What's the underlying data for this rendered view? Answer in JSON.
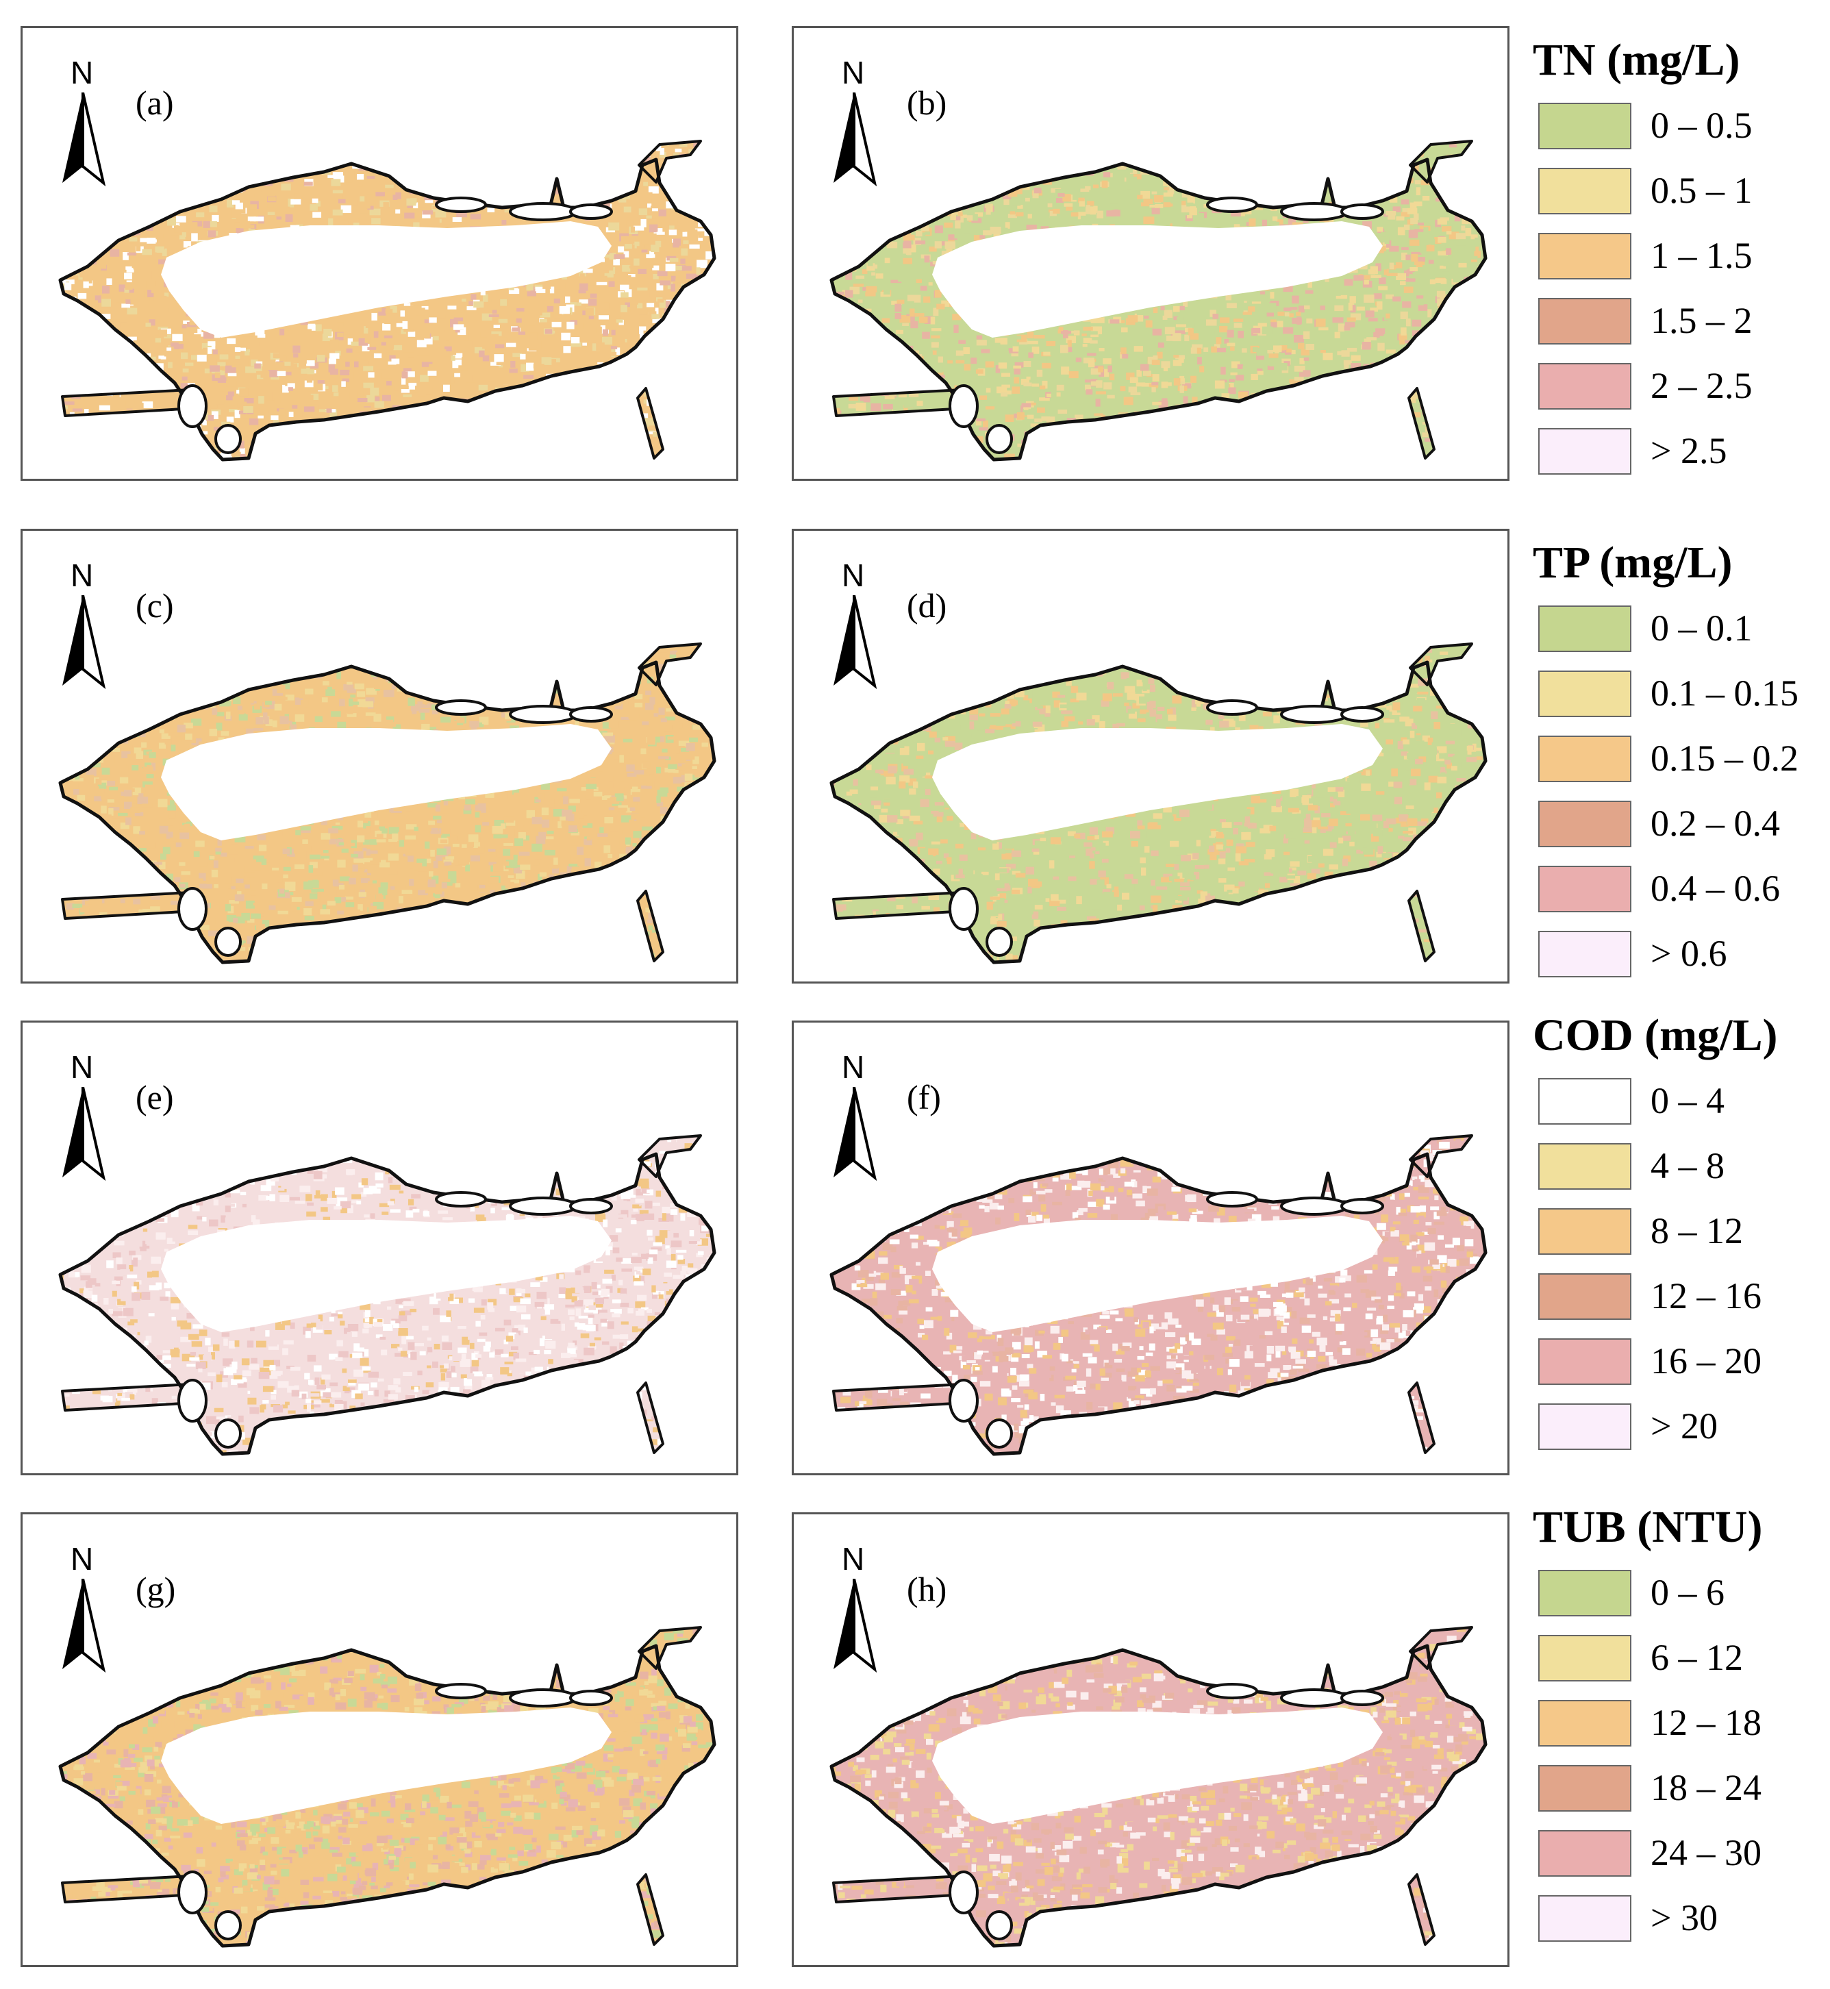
{
  "panels": [
    {
      "label": "(a)",
      "north": "N",
      "palette": [
        "#f3c785",
        "#f3c785",
        "#e8b4a3",
        "#ecd89a",
        "#ffffff"
      ]
    },
    {
      "label": "(b)",
      "north": "N",
      "palette": [
        "#c8d996",
        "#f1d996",
        "#f3c785",
        "#ecd89a",
        "#e8b4a3"
      ]
    },
    {
      "label": "(c)",
      "north": "N",
      "palette": [
        "#f3c785",
        "#f3c785",
        "#f1d996",
        "#c8d996",
        "#e8c2a0"
      ]
    },
    {
      "label": "(d)",
      "north": "N",
      "palette": [
        "#c8d996",
        "#c8d996",
        "#f1d996",
        "#f3c785",
        "#e8c2a0"
      ]
    },
    {
      "label": "(e)",
      "north": "N",
      "palette": [
        "#f4dede",
        "#fbeeee",
        "#ffffff",
        "#edc7c7",
        "#f3c785"
      ]
    },
    {
      "label": "(f)",
      "north": "N",
      "palette": [
        "#e8b4b4",
        "#f3c785",
        "#fbeeee",
        "#e8b4a3",
        "#ffffff"
      ]
    },
    {
      "label": "(g)",
      "north": "N",
      "palette": [
        "#f3c785",
        "#e8b4a3",
        "#e8b4b4",
        "#f1d996",
        "#c8d996"
      ]
    },
    {
      "label": "(h)",
      "north": "N",
      "palette": [
        "#e8b4b4",
        "#f3c785",
        "#fbeeee",
        "#e8b4a3",
        "#f1d996"
      ]
    }
  ],
  "legends": [
    {
      "title": "TN (mg/L)",
      "items": [
        {
          "label": "0 – 0.5",
          "color": "#c5d68f"
        },
        {
          "label": "0.5 – 1",
          "color": "#f1e09c"
        },
        {
          "label": "1 – 1.5",
          "color": "#f5c889"
        },
        {
          "label": "1.5 – 2",
          "color": "#e1a58a"
        },
        {
          "label": "2 – 2.5",
          "color": "#eaaeae"
        },
        {
          "label": "> 2.5",
          "color": "#fbeefb"
        }
      ]
    },
    {
      "title": "TP (mg/L)",
      "items": [
        {
          "label": "0 – 0.1",
          "color": "#c5d68f"
        },
        {
          "label": "0.1 – 0.15",
          "color": "#f1e09c"
        },
        {
          "label": "0.15 – 0.2",
          "color": "#f5c889"
        },
        {
          "label": "0.2 – 0.4",
          "color": "#e1a58a"
        },
        {
          "label": "0.4 – 0.6",
          "color": "#eaaeae"
        },
        {
          "label": "> 0.6",
          "color": "#fbeefb"
        }
      ]
    },
    {
      "title": "COD (mg/L)",
      "items": [
        {
          "label": "0 – 4",
          "color": "#ffffff"
        },
        {
          "label": "4 – 8",
          "color": "#f1e09c"
        },
        {
          "label": "8 – 12",
          "color": "#f5c889"
        },
        {
          "label": "12 – 16",
          "color": "#e1a58a"
        },
        {
          "label": "16 – 20",
          "color": "#eaaeae"
        },
        {
          "label": "> 20",
          "color": "#fbeefb"
        }
      ]
    },
    {
      "title": "TUB (NTU)",
      "items": [
        {
          "label": "0 – 6",
          "color": "#c5d68f"
        },
        {
          "label": "6 – 12",
          "color": "#f1e09c"
        },
        {
          "label": "12 – 18",
          "color": "#f5c889"
        },
        {
          "label": "18 – 24",
          "color": "#e1a58a"
        },
        {
          "label": "24 – 30",
          "color": "#eaaeae"
        },
        {
          "label": "> 30",
          "color": "#fbeefb"
        }
      ]
    }
  ]
}
